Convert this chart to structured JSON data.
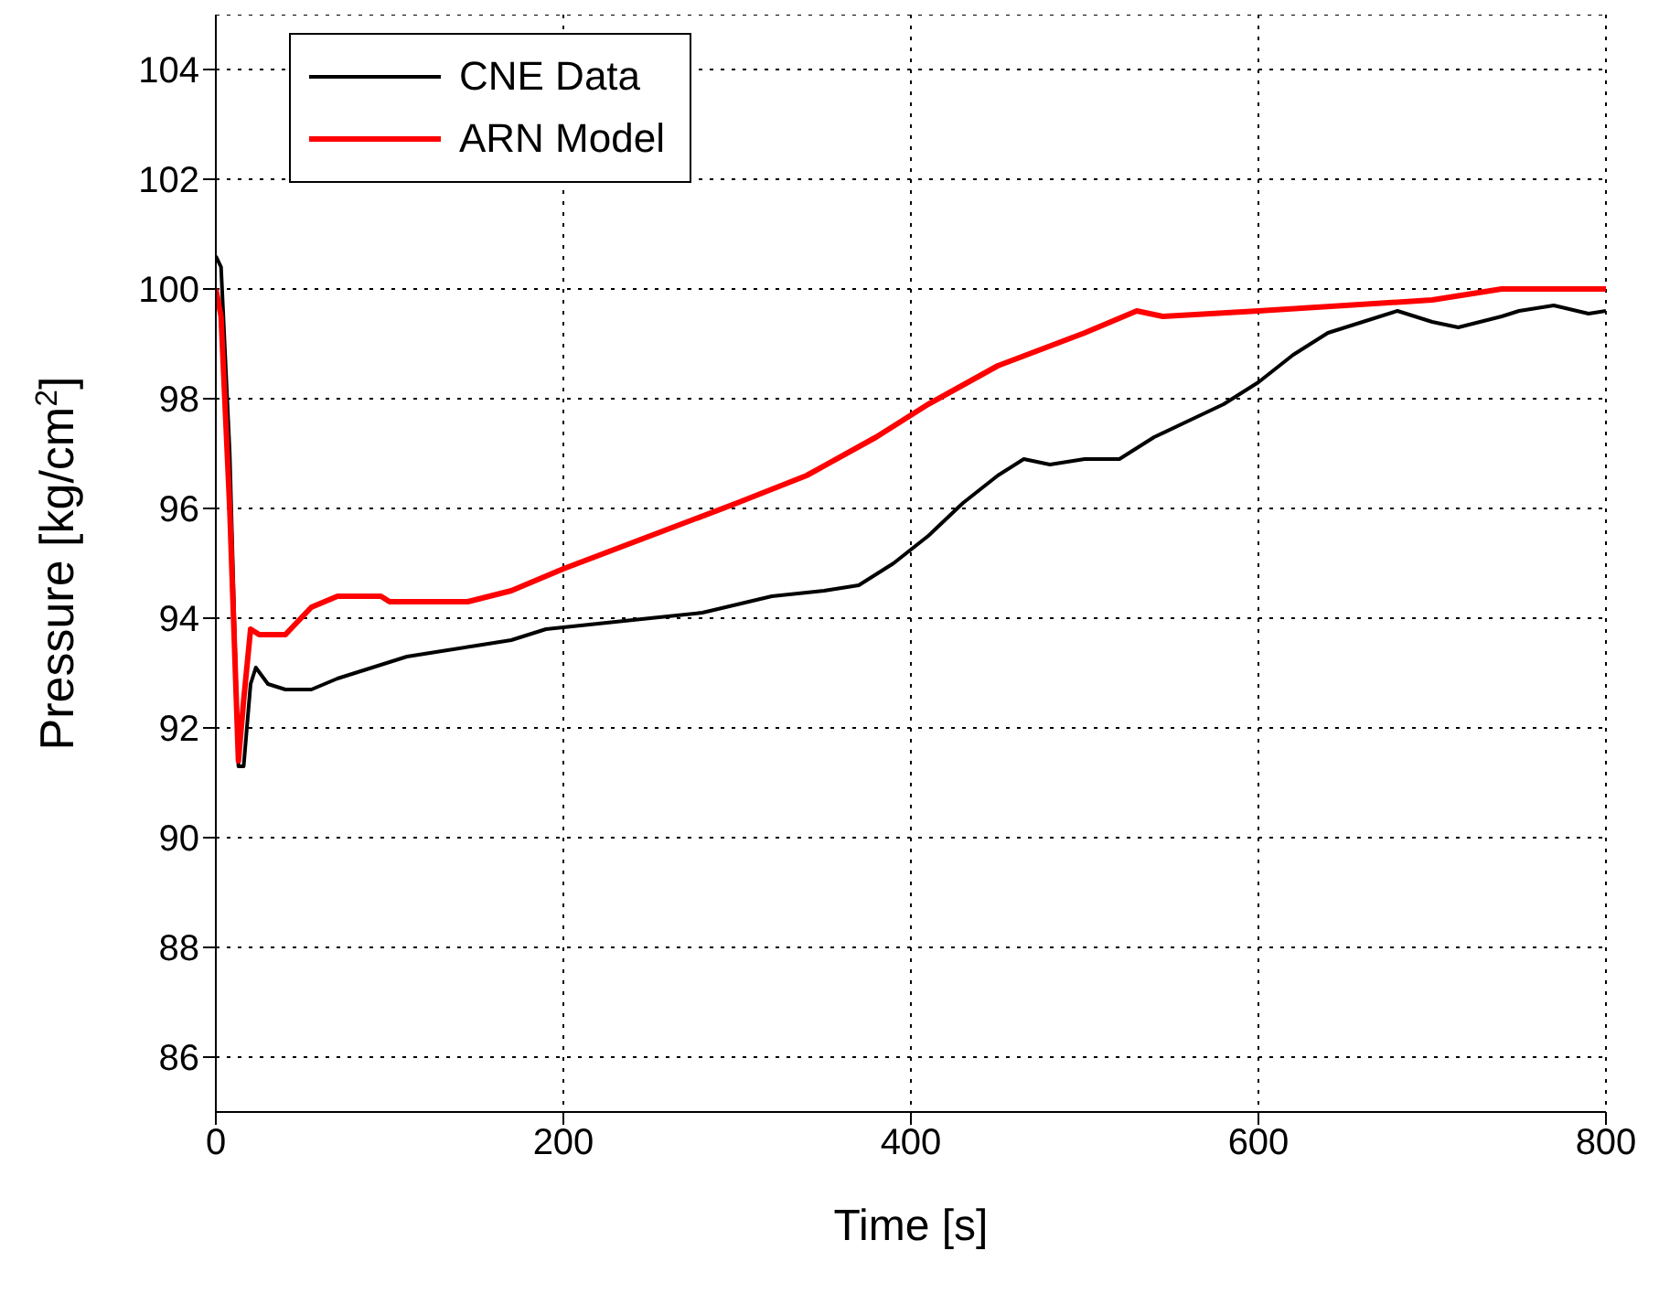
{
  "chart_data": {
    "type": "line",
    "xlabel": "Time [s]",
    "ylabel": "Pressure [kg/cm$^{2}$]",
    "xlim": [
      0,
      800
    ],
    "xticks": [
      0,
      200,
      400,
      600,
      800
    ],
    "ylim": [
      85,
      105
    ],
    "yticks": [
      86,
      88,
      90,
      92,
      94,
      96,
      98,
      100,
      102,
      104
    ],
    "grid": true,
    "legend": "top left",
    "line_style": "solid",
    "series": [
      {
        "name": "CNE Data",
        "color": "#000000",
        "x": [
          0,
          3,
          8,
          13,
          16,
          20,
          23,
          30,
          40,
          55,
          70,
          90,
          110,
          130,
          150,
          170,
          190,
          220,
          250,
          280,
          320,
          350,
          370,
          390,
          410,
          430,
          450,
          465,
          480,
          500,
          520,
          540,
          560,
          580,
          600,
          620,
          640,
          660,
          680,
          700,
          715,
          740,
          750,
          770,
          790,
          800
        ],
        "values": [
          100.6,
          100.4,
          97,
          91.3,
          91.3,
          92.8,
          93.1,
          92.8,
          92.7,
          92.7,
          92.9,
          93.1,
          93.3,
          93.4,
          93.5,
          93.6,
          93.8,
          93.9,
          94.0,
          94.1,
          94.4,
          94.5,
          94.6,
          95.0,
          95.5,
          96.1,
          96.6,
          96.9,
          96.8,
          96.9,
          96.9,
          97.3,
          97.6,
          97.9,
          98.3,
          98.8,
          99.2,
          99.4,
          99.6,
          99.4,
          99.3,
          99.5,
          99.6,
          99.7,
          99.55,
          99.6
        ]
      },
      {
        "name": "ARN Model",
        "color": "#ff0000",
        "x": [
          0,
          3,
          8,
          13,
          16,
          20,
          25,
          40,
          55,
          70,
          95,
          100,
          145,
          170,
          200,
          250,
          300,
          340,
          380,
          410,
          450,
          500,
          530,
          545,
          600,
          650,
          700,
          740,
          800
        ],
        "values": [
          100,
          99.5,
          96,
          91.4,
          92.5,
          93.8,
          93.7,
          93.7,
          94.2,
          94.4,
          94.4,
          94.3,
          94.3,
          94.5,
          94.9,
          95.5,
          96.1,
          96.6,
          97.3,
          97.9,
          98.6,
          99.2,
          99.6,
          99.5,
          99.6,
          99.7,
          99.8,
          100,
          100
        ]
      }
    ]
  }
}
